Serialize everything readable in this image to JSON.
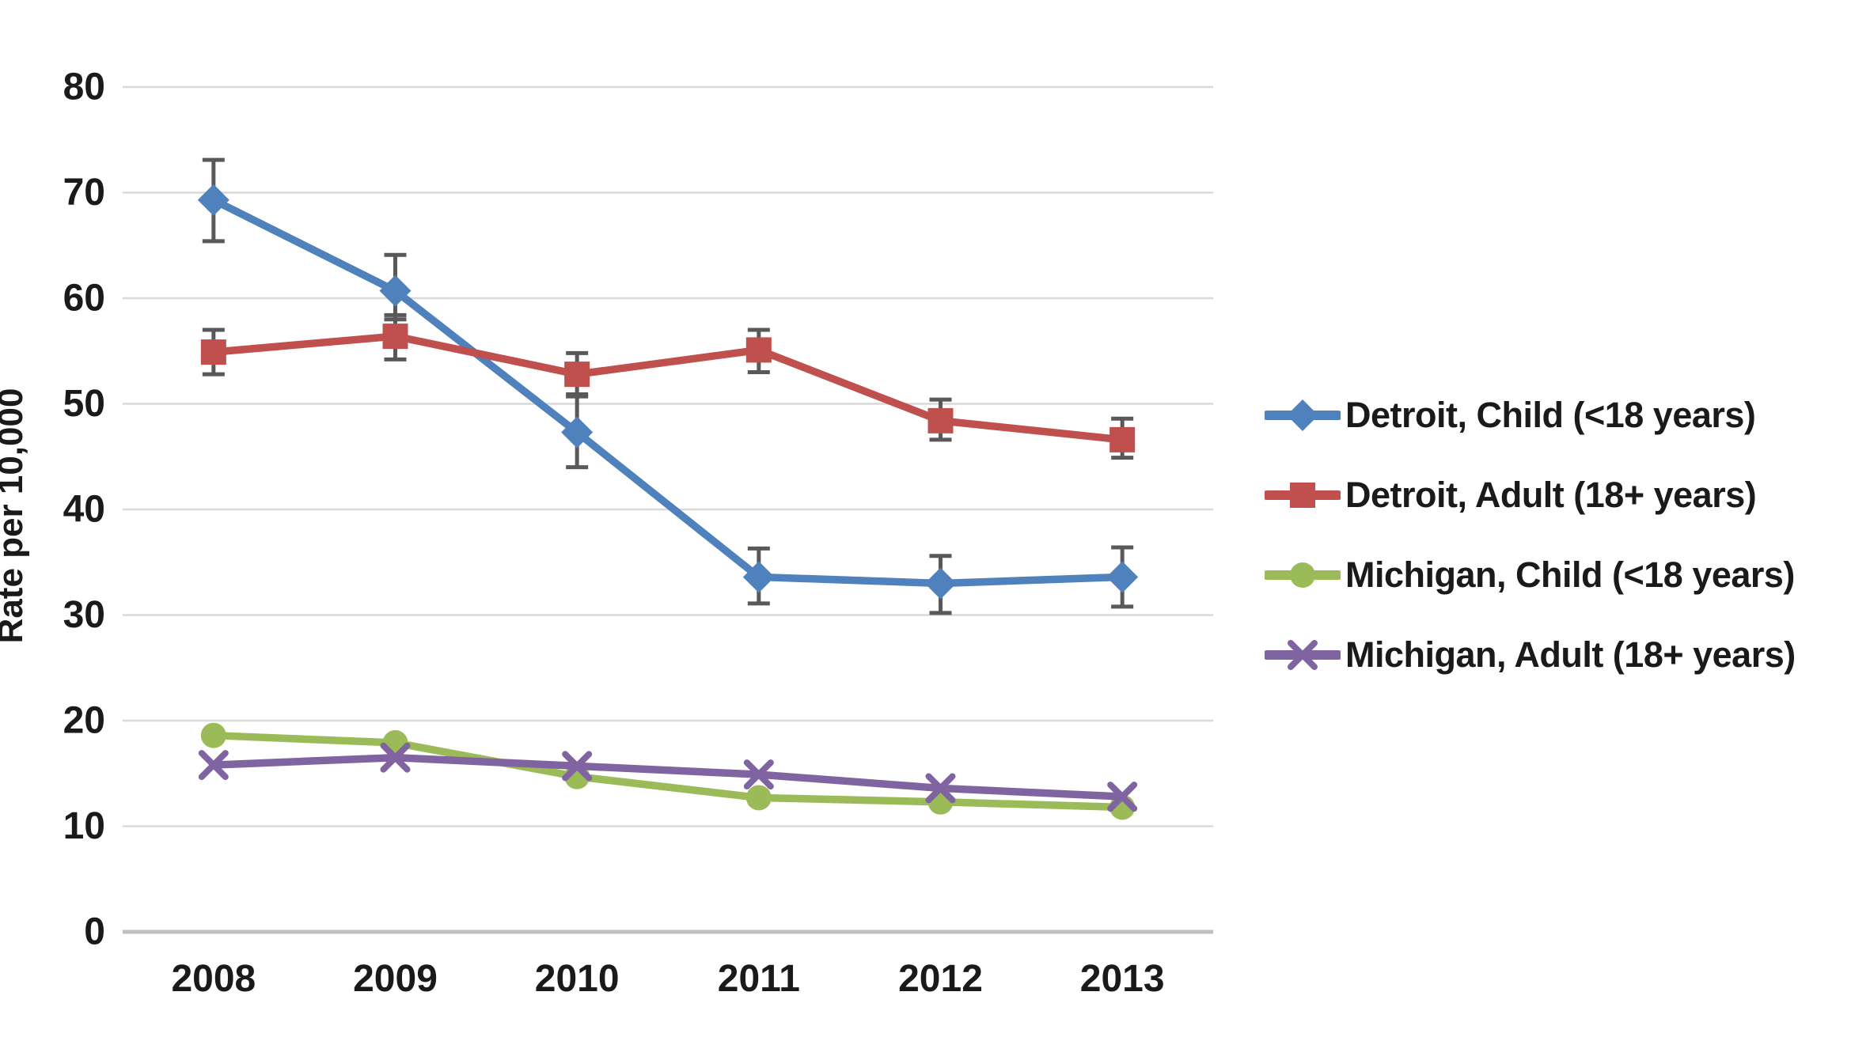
{
  "chart_data": {
    "type": "line",
    "title": "",
    "xlabel": "",
    "ylabel": "Rate per 10,000",
    "x": [
      "2008",
      "2009",
      "2010",
      "2011",
      "2012",
      "2013"
    ],
    "ylim": [
      0,
      80
    ],
    "yticks": [
      0,
      10,
      20,
      30,
      40,
      50,
      60,
      70,
      80
    ],
    "grid": true,
    "legend_position": "right",
    "series": [
      {
        "name": "Detroit, Child (<18 years)",
        "color": "#4F81BD",
        "marker": "diamond",
        "values": [
          69.3,
          60.7,
          47.3,
          33.6,
          33.0,
          33.6
        ],
        "error_upper": [
          73.1,
          64.1,
          50.9,
          36.3,
          35.6,
          36.4
        ],
        "error_lower": [
          65.4,
          58.0,
          44.0,
          31.1,
          30.2,
          30.8
        ]
      },
      {
        "name": "Detroit, Adult (18+ years)",
        "color": "#C0504D",
        "marker": "square",
        "values": [
          54.9,
          56.4,
          52.8,
          55.1,
          48.4,
          46.6
        ],
        "error_upper": [
          57.0,
          58.4,
          54.8,
          57.0,
          50.4,
          48.6
        ],
        "error_lower": [
          52.8,
          54.2,
          50.7,
          53.0,
          46.6,
          44.9
        ]
      },
      {
        "name": "Michigan, Child (<18 years)",
        "color": "#9BBB59",
        "marker": "circle",
        "values": [
          18.6,
          17.9,
          14.7,
          12.7,
          12.3,
          11.8
        ]
      },
      {
        "name": "Michigan, Adult (18+ years)",
        "color": "#8064A2",
        "marker": "x",
        "values": [
          15.8,
          16.5,
          15.7,
          14.9,
          13.6,
          12.8
        ]
      }
    ],
    "colors": {
      "gridline": "#D9D9D9",
      "axis_line": "#BFBFBF",
      "error_bar": "#595959",
      "text": "#1A1A1A"
    }
  }
}
